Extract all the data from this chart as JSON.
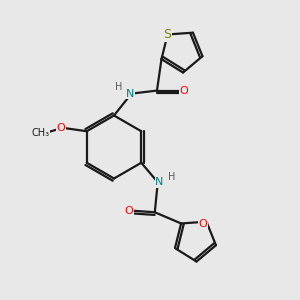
{
  "bg_color": "#e8e8e8",
  "atom_colors": {
    "S": "#808000",
    "O": "#ff0000",
    "N": "#008080",
    "C": "#1a1a1a",
    "H": "#5a5a5a"
  },
  "bond_color": "#1a1a1a",
  "lw": 1.6,
  "font_size": 8,
  "fig_size": [
    3.0,
    3.0
  ],
  "dpi": 100
}
